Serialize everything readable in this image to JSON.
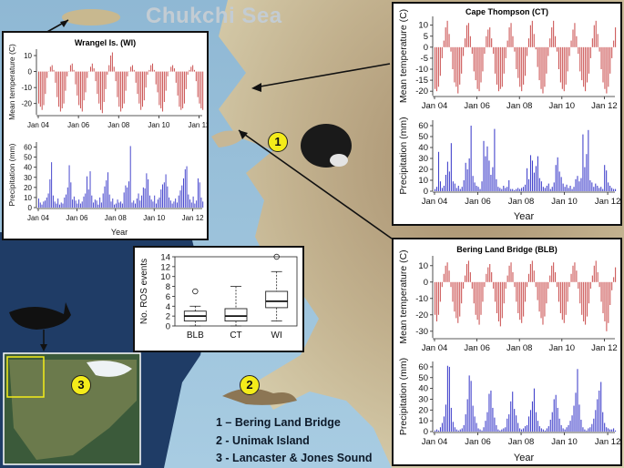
{
  "map": {
    "sea_label": "Chukchi Sea",
    "legend_items": [
      "1 – Bering Land Bridge",
      "2 - Unimak Island",
      "3 - Lancaster & Jones Sound"
    ],
    "marker_labels": [
      "1",
      "2",
      "3"
    ]
  },
  "chart_data": [
    {
      "id": "wi",
      "type": "bar",
      "title": "Wrangel Is. (WI)",
      "x_tick_labels": [
        "Jan 04",
        "Jan 06",
        "Jan 08",
        "Jan 10",
        "Jan 12"
      ],
      "xlabel": "Year",
      "temperature": {
        "ylabel": "Mean temperature (C)",
        "ylim": [
          -27,
          14
        ],
        "yticks": [
          10,
          0,
          -10,
          -20
        ],
        "color": "#cc5555",
        "values": [
          -20,
          -22,
          -24,
          -21,
          -14,
          -4,
          0,
          3,
          4,
          1,
          -7,
          -16,
          -22,
          -25,
          -23,
          -20,
          -12,
          -3,
          0,
          4,
          5,
          1,
          -8,
          -15,
          -21,
          -23,
          -25,
          -18,
          -13,
          -4,
          0,
          3,
          5,
          2,
          -6,
          -14,
          -20,
          -24,
          -26,
          -19,
          -11,
          -2,
          4,
          10,
          12,
          3,
          -6,
          -16,
          -22,
          -25,
          -23,
          -20,
          -12,
          -3,
          0,
          3,
          4,
          1,
          -7,
          -14,
          -20,
          -24,
          -22,
          -18,
          -10,
          -2,
          1,
          4,
          5,
          1,
          -8,
          -13,
          -21,
          -23,
          -25,
          -19,
          -12,
          -3,
          0,
          3,
          4,
          2,
          -7,
          -15,
          -22,
          -24,
          -23,
          -20,
          -11,
          -2,
          1,
          3,
          4,
          1,
          -6,
          -16,
          -20,
          -23,
          -24
        ]
      },
      "precipitation": {
        "ylabel": "Precipitation (mm)",
        "ylim": [
          0,
          65
        ],
        "yticks": [
          0,
          10,
          20,
          30,
          40,
          50,
          60
        ],
        "color": "#4444cc",
        "values": [
          9,
          5,
          3,
          6,
          7,
          10,
          14,
          28,
          45,
          12,
          6,
          4,
          9,
          3,
          5,
          4,
          10,
          13,
          20,
          42,
          25,
          8,
          11,
          7,
          4,
          8,
          4,
          6,
          11,
          14,
          31,
          18,
          36,
          12,
          5,
          8,
          7,
          3,
          10,
          5,
          14,
          21,
          27,
          35,
          13,
          6,
          9,
          3,
          4,
          8,
          5,
          6,
          4,
          15,
          22,
          20,
          26,
          61,
          5,
          7,
          4,
          9,
          14,
          7,
          12,
          20,
          19,
          34,
          28,
          12,
          8,
          6,
          12,
          4,
          8,
          10,
          18,
          23,
          25,
          33,
          21,
          10,
          7,
          4,
          6,
          9,
          5,
          12,
          17,
          22,
          29,
          38,
          41,
          13,
          8,
          5,
          11,
          4,
          7,
          29,
          25,
          10,
          6
        ]
      }
    },
    {
      "id": "ct",
      "type": "bar",
      "title": "Cape Thompson (CT)",
      "x_tick_labels": [
        "Jan 04",
        "Jan 06",
        "Jan 08",
        "Jan 10",
        "Jan 12"
      ],
      "xlabel": "Year",
      "temperature": {
        "ylabel": "Mean temperature (C)",
        "ylim": [
          -22,
          14
        ],
        "yticks": [
          10,
          5,
          0,
          -5,
          -10,
          -15,
          -20
        ],
        "color": "#cc5555",
        "values": [
          -19,
          -20,
          -18,
          -13,
          -5,
          3,
          9,
          12,
          6,
          -2,
          -10,
          -16,
          -18,
          -21,
          -17,
          -12,
          -4,
          4,
          10,
          11,
          5,
          -3,
          -11,
          -15,
          -19,
          -20,
          -16,
          -11,
          -3,
          5,
          8,
          9,
          4,
          -3,
          -12,
          -17,
          -20,
          -19,
          -18,
          -12,
          -5,
          3,
          9,
          11,
          5,
          -2,
          -10,
          -14,
          -18,
          -20,
          -17,
          -13,
          -4,
          4,
          10,
          12,
          6,
          -1,
          -9,
          -15,
          -19,
          -21,
          -18,
          -12,
          -4,
          4,
          9,
          12,
          5,
          -2,
          -10,
          -16,
          -19,
          -20,
          -17,
          -11,
          -4,
          3,
          8,
          11,
          5,
          -3,
          -11,
          -15,
          -18,
          -20,
          -16,
          -12,
          -5,
          4,
          10,
          12,
          6,
          -2,
          -10,
          -16,
          -19,
          -21,
          -18,
          -12,
          -5,
          3,
          9
        ]
      },
      "precipitation": {
        "ylabel": "Precipitation (mm)",
        "ylim": [
          0,
          65
        ],
        "yticks": [
          0,
          10,
          20,
          30,
          40,
          50,
          60
        ],
        "color": "#4444cc",
        "values": [
          2,
          4,
          36,
          9,
          3,
          5,
          15,
          27,
          18,
          44,
          9,
          7,
          3,
          5,
          2,
          4,
          10,
          26,
          20,
          30,
          60,
          14,
          8,
          5,
          4,
          2,
          9,
          46,
          32,
          41,
          28,
          15,
          22,
          57,
          11,
          4,
          3,
          2,
          5,
          3,
          4,
          10,
          2,
          2,
          1,
          2,
          3,
          2,
          3,
          4,
          6,
          21,
          11,
          33,
          28,
          17,
          23,
          32,
          12,
          9,
          4,
          3,
          5,
          7,
          2,
          4,
          8,
          24,
          31,
          18,
          13,
          7,
          4,
          6,
          3,
          5,
          2,
          4,
          11,
          14,
          9,
          12,
          52,
          22,
          34,
          56,
          10,
          8,
          4,
          7,
          5,
          3,
          4,
          2,
          24,
          19,
          8,
          5,
          3,
          2,
          2
        ]
      }
    },
    {
      "id": "blb",
      "type": "bar",
      "title": "Bering Land Bridge (BLB)",
      "x_tick_labels": [
        "Jan 04",
        "Jan 06",
        "Jan 08",
        "Jan 10",
        "Jan 12"
      ],
      "xlabel": "Year",
      "temperature": {
        "ylabel": "Mean temperature (C)",
        "ylim": [
          -34,
          16
        ],
        "yticks": [
          10,
          0,
          -10,
          -20,
          -30
        ],
        "color": "#cc5555",
        "values": [
          -20,
          -24,
          -20,
          -12,
          -3,
          5,
          10,
          12,
          7,
          -3,
          -12,
          -18,
          -22,
          -25,
          -21,
          -13,
          -4,
          4,
          11,
          13,
          6,
          -4,
          -13,
          -20,
          -23,
          -26,
          -20,
          -12,
          -3,
          5,
          9,
          11,
          6,
          -4,
          -12,
          -19,
          -24,
          -27,
          -22,
          -13,
          -4,
          4,
          10,
          12,
          6,
          -3,
          -12,
          -19,
          -23,
          -25,
          -21,
          -12,
          -3,
          5,
          11,
          13,
          7,
          -3,
          -11,
          -18,
          -22,
          -26,
          -21,
          -13,
          -4,
          4,
          10,
          12,
          6,
          -3,
          -12,
          -19,
          -23,
          -25,
          -20,
          -12,
          -3,
          5,
          10,
          12,
          7,
          -4,
          -13,
          -20,
          -24,
          -26,
          -21,
          -13,
          -4,
          4,
          10,
          13,
          6,
          -3,
          -12,
          -19,
          -24,
          -30,
          -25,
          -14,
          -5,
          3,
          9
        ]
      },
      "precipitation": {
        "ylabel": "Precipitation (mm)",
        "ylim": [
          0,
          65
        ],
        "yticks": [
          0,
          10,
          20,
          30,
          40,
          50,
          60
        ],
        "color": "#4444cc",
        "values": [
          1,
          2,
          1,
          4,
          8,
          14,
          25,
          61,
          60,
          22,
          9,
          4,
          2,
          1,
          2,
          3,
          6,
          16,
          30,
          52,
          47,
          24,
          14,
          8,
          3,
          2,
          1,
          4,
          10,
          18,
          35,
          38,
          22,
          13,
          6,
          2,
          1,
          2,
          3,
          4,
          12,
          16,
          28,
          37,
          21,
          15,
          8,
          3,
          2,
          3,
          5,
          6,
          14,
          20,
          28,
          40,
          18,
          10,
          5,
          3,
          2,
          1,
          3,
          5,
          11,
          18,
          30,
          34,
          22,
          12,
          6,
          3,
          2,
          4,
          6,
          10,
          15,
          24,
          36,
          58,
          25,
          11,
          4,
          2,
          1,
          3,
          4,
          7,
          12,
          20,
          30,
          38,
          46,
          18,
          8,
          4,
          3,
          2,
          2,
          3,
          1
        ]
      }
    },
    {
      "id": "ros",
      "type": "boxplot",
      "ylabel": "No. ROS events",
      "ylim": [
        0,
        14
      ],
      "yticks": [
        0,
        2,
        4,
        6,
        8,
        10,
        12,
        14
      ],
      "categories": [
        "BLB",
        "CT",
        "WI"
      ],
      "boxes": [
        {
          "whisker_low": 0,
          "q1": 1,
          "median": 2,
          "q3": 3,
          "whisker_high": 4,
          "outliers": [
            7
          ]
        },
        {
          "whisker_low": 0,
          "q1": 1,
          "median": 2,
          "q3": 3.5,
          "whisker_high": 8,
          "outliers": []
        },
        {
          "whisker_low": 1,
          "q1": 3.7,
          "median": 5,
          "q3": 7,
          "whisker_high": 11,
          "outliers": [
            14
          ]
        }
      ]
    }
  ]
}
